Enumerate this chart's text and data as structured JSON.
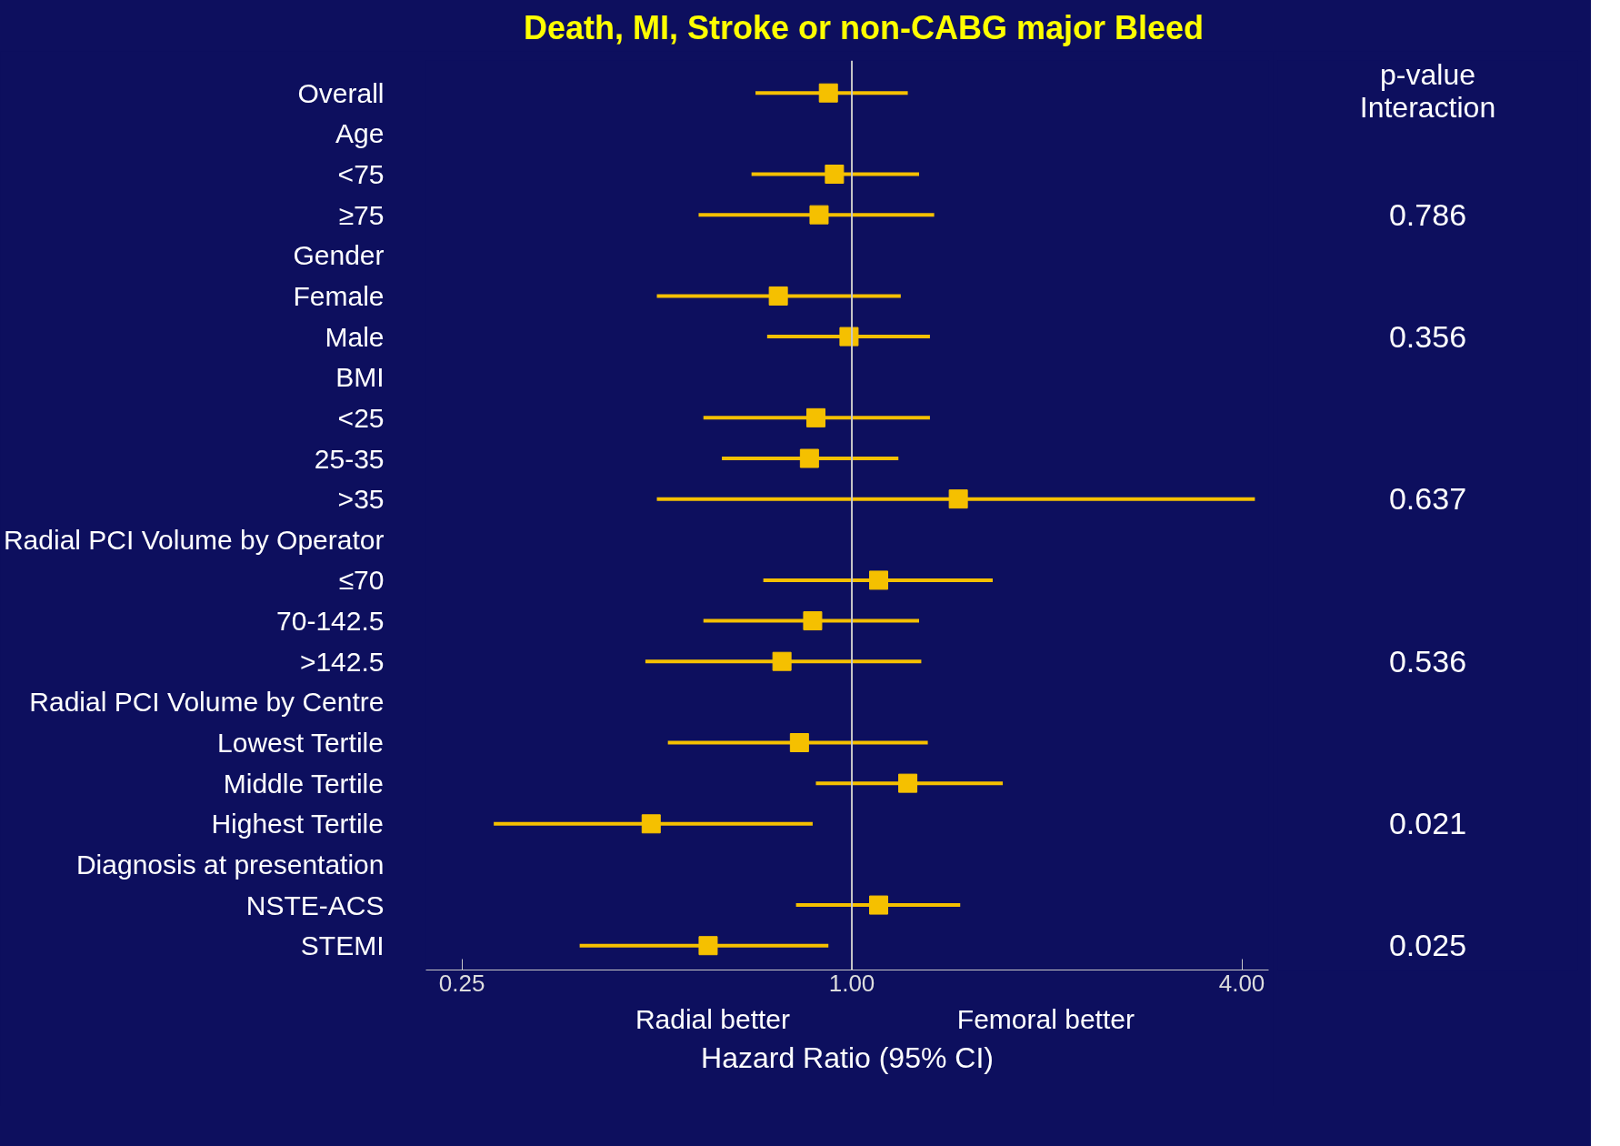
{
  "chart_data": {
    "type": "scatter",
    "orientation": "horizontal",
    "title": "Death, MI, Stroke or non-CABG major Bleed",
    "xlabel": "Hazard Ratio (95% CI)",
    "categories": [
      "Overall",
      "Age",
      "<75",
      "≥75",
      "Gender",
      "Female",
      "Male",
      "BMI",
      "<25",
      "25-35",
      ">35",
      "Radial PCI Volume by Operator",
      "≤70",
      "70-142.5",
      ">142.5",
      "Radial PCI Volume by Centre",
      "Lowest Tertile",
      "Middle Tertile",
      "Highest Tertile",
      "Diagnosis at presentation",
      "NSTE-ACS",
      "STEMI"
    ],
    "series": [
      {
        "color": "#f5c000",
        "values": [
          0.92,
          null,
          0.94,
          0.89,
          null,
          0.77,
          0.99,
          null,
          0.88,
          0.86,
          1.46,
          null,
          1.1,
          0.87,
          0.78,
          null,
          0.83,
          1.22,
          0.49,
          null,
          1.1,
          0.6
        ],
        "errors": [
          [
            0.71,
            1.22
          ],
          null,
          [
            0.7,
            1.27
          ],
          [
            0.58,
            1.34
          ],
          null,
          [
            0.5,
            1.19
          ],
          [
            0.74,
            1.32
          ],
          null,
          [
            0.59,
            1.32
          ],
          [
            0.63,
            1.18
          ],
          [
            0.5,
            4.19
          ],
          null,
          [
            0.73,
            1.65
          ],
          [
            0.59,
            1.27
          ],
          [
            0.48,
            1.28
          ],
          null,
          [
            0.52,
            1.31
          ],
          [
            0.88,
            1.71
          ],
          [
            0.28,
            0.87
          ],
          null,
          [
            0.82,
            1.47
          ],
          [
            0.38,
            0.92
          ]
        ]
      }
    ],
    "log": "x",
    "xlim": [
      0.22,
      4.4
    ],
    "xticks": [
      {
        "value": 0.25,
        "label": "0.25"
      },
      {
        "value": 1,
        "label": "1.00"
      },
      {
        "value": 4,
        "label": "4.00"
      }
    ],
    "marker": "square",
    "grid": false,
    "ref_lines": [
      {
        "axis": "x",
        "value": 1,
        "color": "#c8c8c8"
      }
    ],
    "annotations": [
      "p-value Interaction",
      "Radial better",
      "Femoral better",
      "0.786",
      "0.356",
      "0.637",
      "0.536",
      "0.021",
      "0.025"
    ]
  }
}
